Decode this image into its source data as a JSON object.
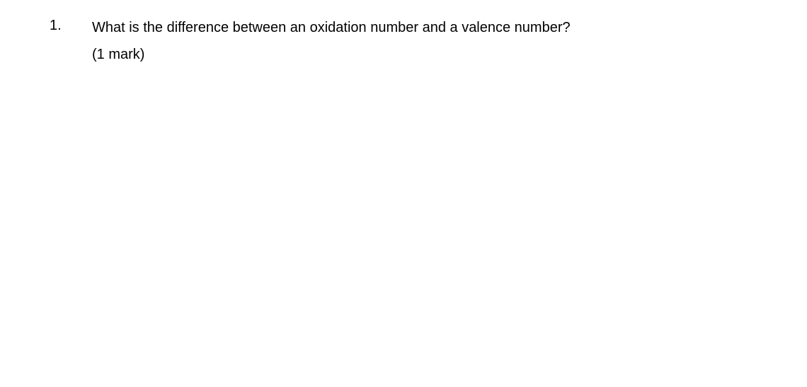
{
  "question": {
    "number": "1.",
    "text": "What is the difference between an oxidation number and a valence number?",
    "marks": "(1 mark)"
  },
  "style": {
    "background_color": "#ffffff",
    "text_color": "#000000",
    "font_family": "Arial, Helvetica, sans-serif",
    "font_size_pt": 15,
    "line_height": 1.9
  }
}
